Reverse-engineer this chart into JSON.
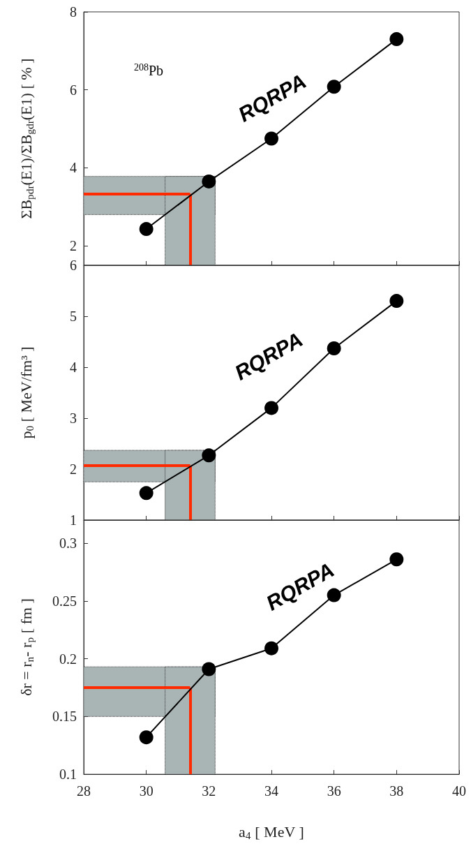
{
  "chart_data": [
    {
      "type": "line",
      "ylabel": "ΣB$_{pdr}$(E1)/ΣB$_{gdr}$(E1) [ % ]",
      "annotations": [
        "$^{208}$Pb"
      ],
      "x": [
        30,
        32,
        34,
        36,
        38
      ],
      "series": [
        {
          "name": "RQRPA",
          "color": "#000000",
          "values": [
            2.43,
            3.65,
            4.75,
            6.08,
            7.3
          ]
        }
      ],
      "xlim": [
        28,
        40
      ],
      "xticks": [
        28,
        30,
        32,
        34,
        36,
        38,
        40
      ],
      "ylim": [
        1.5,
        8
      ],
      "yticks": [
        2,
        4,
        6,
        8
      ],
      "tick_labels": "y",
      "marker": "circle",
      "bands": [
        {
          "axis": "y",
          "from": 2.8,
          "to": 3.78,
          "color": "#a9b4b4"
        },
        {
          "axis": "x",
          "from": 30.6,
          "to": 32.2,
          "color": "#a9b4b4"
        }
      ],
      "ref_lines": [
        {
          "axis": "y",
          "value": 3.33,
          "color": "#ff2a00"
        },
        {
          "axis": "x",
          "value": 31.4,
          "color": "#ff2a00"
        }
      ]
    },
    {
      "type": "line",
      "ylabel": "p$_{0}$ [ MeV/fm³ ]",
      "x": [
        30,
        32,
        34,
        36,
        38
      ],
      "series": [
        {
          "name": "RQRPA",
          "color": "#000000",
          "values": [
            1.53,
            2.27,
            3.2,
            4.37,
            5.3
          ]
        }
      ],
      "xlim": [
        28,
        40
      ],
      "xticks": [
        28,
        30,
        32,
        34,
        36,
        38,
        40
      ],
      "ylim": [
        1,
        6
      ],
      "yticks": [
        1,
        2,
        3,
        4,
        5,
        6
      ],
      "tick_labels": "y",
      "marker": "circle",
      "bands": [
        {
          "axis": "y",
          "from": 1.75,
          "to": 2.37,
          "color": "#a9b4b4"
        },
        {
          "axis": "x",
          "from": 30.6,
          "to": 32.2,
          "color": "#a9b4b4"
        }
      ],
      "ref_lines": [
        {
          "axis": "x",
          "value": 31.4,
          "color": "#ff2a00"
        },
        {
          "axis": "y",
          "value": 2.07,
          "color": "#ff2a00"
        }
      ]
    },
    {
      "type": "line",
      "ylabel": "δr = r$_{n}$- r$_{p}$ [ fm ]",
      "xlabel": "a$_{4}$ [ MeV ]",
      "x": [
        30,
        32,
        34,
        36,
        38
      ],
      "series": [
        {
          "name": "RQRPA",
          "color": "#000000",
          "values": [
            0.132,
            0.191,
            0.209,
            0.255,
            0.286
          ]
        }
      ],
      "xlim": [
        28,
        40
      ],
      "xticks": [
        28,
        30,
        32,
        34,
        36,
        38,
        40
      ],
      "ylim": [
        0.1,
        0.32
      ],
      "yticks": [
        0.1,
        0.15,
        0.2,
        0.25,
        0.3
      ],
      "marker": "circle",
      "bands": [
        {
          "axis": "y",
          "from": 0.15,
          "to": 0.193,
          "color": "#a9b4b4"
        },
        {
          "axis": "x",
          "from": 30.6,
          "to": 32.2,
          "color": "#a9b4b4"
        }
      ],
      "ref_lines": [
        {
          "axis": "x",
          "value": 31.4,
          "color": "#ff2a00"
        },
        {
          "axis": "y",
          "value": 0.175,
          "color": "#ff2a00"
        }
      ]
    }
  ]
}
